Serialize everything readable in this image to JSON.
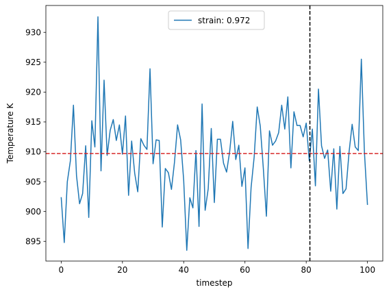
{
  "chart_data": {
    "type": "line",
    "title": "",
    "xlabel": "timestep",
    "ylabel": "Temperature K",
    "xlim": [
      -5,
      105
    ],
    "ylim": [
      891.7,
      934.5
    ],
    "xticks": [
      0,
      20,
      40,
      60,
      80,
      100
    ],
    "yticks": [
      895,
      900,
      905,
      910,
      915,
      920,
      925,
      930
    ],
    "grid": false,
    "legend_position": "top-center",
    "series": [
      {
        "name": "strain: 0.972",
        "color": "#1f77b4",
        "x": [
          0,
          1,
          2,
          3,
          4,
          5,
          6,
          7,
          8,
          9,
          10,
          11,
          12,
          13,
          14,
          15,
          16,
          17,
          18,
          19,
          20,
          21,
          22,
          23,
          24,
          25,
          26,
          27,
          28,
          29,
          30,
          31,
          32,
          33,
          34,
          35,
          36,
          37,
          38,
          39,
          40,
          41,
          42,
          43,
          44,
          45,
          46,
          47,
          48,
          49,
          50,
          51,
          52,
          53,
          54,
          55,
          56,
          57,
          58,
          59,
          60,
          61,
          62,
          63,
          64,
          65,
          66,
          67,
          68,
          69,
          70,
          71,
          72,
          73,
          74,
          75,
          76,
          77,
          78,
          79,
          80,
          81,
          82,
          83,
          84,
          85,
          86,
          87,
          88,
          89,
          90,
          91,
          92,
          93,
          94,
          95,
          96,
          97,
          98,
          99,
          100
        ],
        "values": [
          902.4,
          894.8,
          905.0,
          908.5,
          917.8,
          906.0,
          901.3,
          903.0,
          911.0,
          899.0,
          915.2,
          910.8,
          932.6,
          906.8,
          922.0,
          909.4,
          913.6,
          915.4,
          911.9,
          914.5,
          909.6,
          916.0,
          902.7,
          911.8,
          906.4,
          903.3,
          912.2,
          911.1,
          910.4,
          923.9,
          908.0,
          912.0,
          911.9,
          897.4,
          907.2,
          906.5,
          903.7,
          908.3,
          914.5,
          912.0,
          905.2,
          893.5,
          902.3,
          900.6,
          910.2,
          897.5,
          918.0,
          900.2,
          903.8,
          913.9,
          901.5,
          912.1,
          912.1,
          908.1,
          906.6,
          910.0,
          915.1,
          908.7,
          911.1,
          904.2,
          907.3,
          893.8,
          904.0,
          909.1,
          917.5,
          914.3,
          907.2,
          899.2,
          913.5,
          911.1,
          911.8,
          913.2,
          917.8,
          913.8,
          919.2,
          907.3,
          916.7,
          914.4,
          914.4,
          912.5,
          914.8,
          908.5,
          913.8,
          904.3,
          920.5,
          911.0,
          908.9,
          910.3,
          903.4,
          910.5,
          900.4,
          910.9,
          903.0,
          903.8,
          910.0,
          914.6,
          910.8,
          910.2,
          925.5,
          910.0,
          901.1
        ]
      }
    ],
    "reference_lines": [
      {
        "orientation": "horizontal",
        "value": 909.7,
        "color": "#d62728",
        "style": "dashed"
      },
      {
        "orientation": "vertical",
        "value": 81.2,
        "color": "#000000",
        "style": "dashed"
      }
    ]
  }
}
